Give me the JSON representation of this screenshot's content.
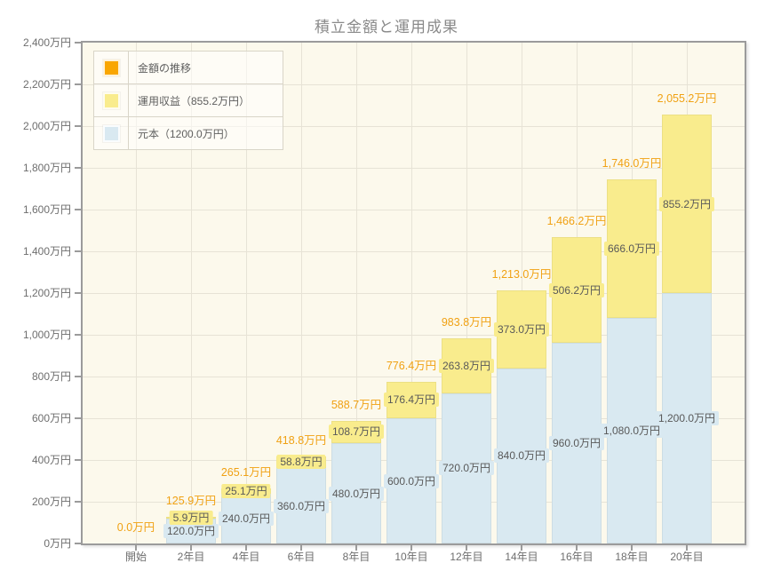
{
  "title": "積立金額と運用成果",
  "legend": {
    "items": [
      {
        "id": "amount-transition",
        "label": "金額の推移",
        "color": "#f9a602"
      },
      {
        "id": "investment-return",
        "label": "運用収益（855.2万円）",
        "color": "#f9ec8d"
      },
      {
        "id": "principal",
        "label": "元本（1200.0万円）",
        "color": "#d9e9f1"
      }
    ]
  },
  "chart_data": {
    "type": "bar",
    "stacked": true,
    "title": "積立金額と運用成果",
    "xlabel": "",
    "ylabel": "",
    "ylim": [
      0,
      2400
    ],
    "ytick_step": 200,
    "ytick_labels": [
      "0万円",
      "200万円",
      "400万円",
      "600万円",
      "800万円",
      "1,000万円",
      "1,200万円",
      "1,400万円",
      "1,600万円",
      "1,800万円",
      "2,000万円",
      "2,200万円",
      "2,400万円"
    ],
    "grid": true,
    "legend_position": "top-left",
    "plot_background": "#fcf9ec",
    "categories": [
      "開始",
      "2年目",
      "4年目",
      "6年目",
      "8年目",
      "10年目",
      "12年目",
      "14年目",
      "16年目",
      "18年目",
      "20年目"
    ],
    "series": [
      {
        "id": "principal",
        "name": "元本",
        "color": "#d9e9f1",
        "values": [
          0,
          120.0,
          240.0,
          360.0,
          480.0,
          600.0,
          720.0,
          840.0,
          960.0,
          1080.0,
          1200.0
        ],
        "data_labels": [
          "",
          "120.0万円",
          "240.0万円",
          "360.0万円",
          "480.0万円",
          "600.0万円",
          "720.0万円",
          "840.0万円",
          "960.0万円",
          "1,080.0万円",
          "1,200.0万円"
        ]
      },
      {
        "id": "investment-return",
        "name": "運用収益",
        "color": "#f9ec8d",
        "values": [
          0,
          5.9,
          25.1,
          58.8,
          108.7,
          176.4,
          263.8,
          373.0,
          506.2,
          666.0,
          855.2
        ],
        "data_labels": [
          "",
          "5.9万円",
          "25.1万円",
          "58.8万円",
          "108.7万円",
          "176.4万円",
          "263.8万円",
          "373.0万円",
          "506.2万円",
          "666.0万円",
          "855.2万円"
        ]
      }
    ],
    "totals": {
      "id": "amount-transition",
      "name": "金額の推移",
      "color": "#f0a113",
      "values": [
        0,
        125.9,
        265.1,
        418.8,
        588.7,
        776.4,
        983.8,
        1213.0,
        1466.2,
        1746.0,
        2055.2
      ],
      "data_labels": [
        "0.0万円",
        "125.9万円",
        "265.1万円",
        "418.8万円",
        "588.7万円",
        "776.4万円",
        "983.8万円",
        "1,213.0万円",
        "1,466.2万円",
        "1,746.0万円",
        "2,055.2万円"
      ]
    }
  }
}
